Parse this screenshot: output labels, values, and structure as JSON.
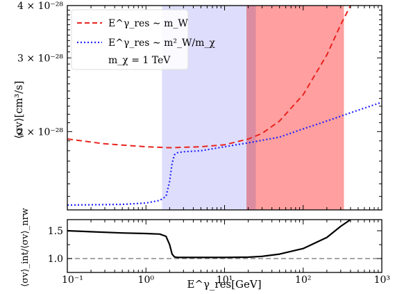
{
  "chart_data": [
    {
      "type": "line",
      "panel": "main",
      "xscale": "log",
      "yscale": "log",
      "xlim": [
        0.1,
        1000
      ],
      "ylim": [
        1.3e-28,
        4e-28
      ],
      "ylabel": "⟨σv⟩[cm³/s]",
      "yticks": [
        {
          "value": 2e-28,
          "label": "2 × 10⁻²⁸"
        },
        {
          "value": 3e-28,
          "label": "3 × 10⁻²⁸"
        },
        {
          "value": 4e-28,
          "label": "4 × 10⁻²⁸"
        }
      ],
      "shaded_regions": [
        {
          "x": [
            1.6,
            25
          ],
          "color": "#d8d8fb"
        },
        {
          "x": [
            19,
            330
          ],
          "color": "#ff9a9a"
        }
      ],
      "legend": {
        "position": "top-left",
        "entries": [
          "E^γ_res ∼ m_W",
          "E^γ_res ∼ m²_W/m_χ",
          "m_χ = 1 TeV"
        ]
      },
      "series": [
        {
          "name": "E^γ_res ∼ m_W",
          "color": "#e8231f",
          "dash": "dashed",
          "x": [
            0.1,
            0.3,
            1,
            2,
            5,
            10,
            20,
            30,
            50,
            100,
            200,
            300,
            400
          ],
          "y": [
            1.92e-28,
            1.87e-28,
            1.84e-28,
            1.83e-28,
            1.84e-28,
            1.86e-28,
            1.92e-28,
            1.98e-28,
            2.12e-28,
            2.45e-28,
            3.05e-28,
            3.6e-28,
            4e-28
          ]
        },
        {
          "name": "E^γ_res ∼ m²_W/m_χ",
          "color": "#2020ff",
          "dash": "dotted",
          "x": [
            0.1,
            0.5,
            1,
            1.5,
            1.8,
            2.0,
            2.15,
            2.3,
            2.5,
            3,
            5,
            10,
            20,
            50,
            100,
            200,
            500,
            1000
          ],
          "y": [
            1.335e-28,
            1.34e-28,
            1.35e-28,
            1.37e-28,
            1.4e-28,
            1.52e-28,
            1.68e-28,
            1.76e-28,
            1.78e-28,
            1.79e-28,
            1.8e-28,
            1.84e-28,
            1.88e-28,
            1.94e-28,
            2.03e-28,
            2.12e-28,
            2.25e-28,
            2.35e-28
          ]
        }
      ]
    },
    {
      "type": "line",
      "panel": "ratio",
      "xscale": "log",
      "xlim": [
        0.1,
        1000
      ],
      "ylim": [
        0.75,
        1.7
      ],
      "xlabel": "E^γ_res[GeV]",
      "ylabel": "⟨σv⟩_int/⟨σv⟩_nrw",
      "xticks": [
        {
          "value": 0.1,
          "label": "10⁻¹"
        },
        {
          "value": 1,
          "label": "10⁰"
        },
        {
          "value": 10,
          "label": "10¹"
        },
        {
          "value": 100,
          "label": "10²"
        },
        {
          "value": 1000,
          "label": "10³"
        }
      ],
      "yticks": [
        {
          "value": 1.0,
          "label": "1.0"
        },
        {
          "value": 1.5,
          "label": "1.5"
        }
      ],
      "reference_line": {
        "y": 1.0,
        "color": "#888888",
        "dash": "dashed"
      },
      "series": [
        {
          "color": "#000000",
          "x": [
            0.1,
            0.5,
            1,
            1.5,
            1.8,
            2.0,
            2.15,
            2.3,
            2.5,
            3,
            5,
            10,
            20,
            30,
            50,
            100,
            200,
            300,
            400
          ],
          "y": [
            1.5,
            1.46,
            1.45,
            1.44,
            1.4,
            1.25,
            1.08,
            1.03,
            1.02,
            1.02,
            1.02,
            1.02,
            1.025,
            1.04,
            1.08,
            1.18,
            1.38,
            1.58,
            1.7
          ]
        }
      ]
    }
  ]
}
